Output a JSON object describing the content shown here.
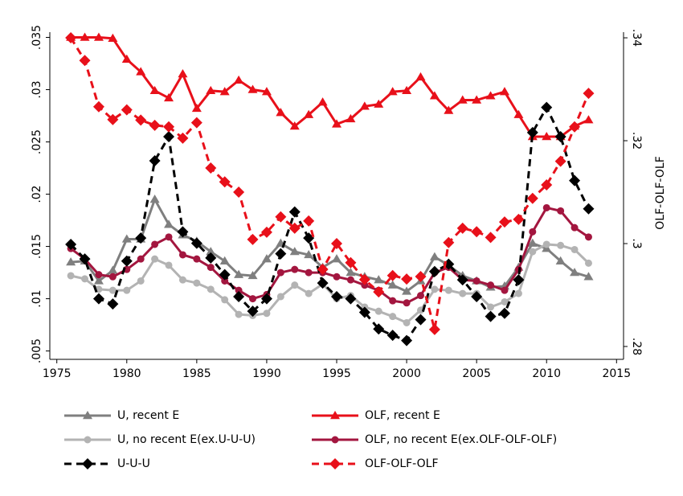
{
  "chart_data": {
    "type": "line",
    "x": [
      1976,
      1977,
      1978,
      1979,
      1980,
      1981,
      1982,
      1983,
      1984,
      1985,
      1986,
      1987,
      1988,
      1989,
      1990,
      1991,
      1992,
      1993,
      1994,
      1995,
      1996,
      1997,
      1998,
      1999,
      2000,
      2001,
      2002,
      2003,
      2004,
      2005,
      2006,
      2007,
      2008,
      2009,
      2010,
      2011,
      2012,
      2013
    ],
    "xlim": [
      1974.5,
      2015.5
    ],
    "xticks": [
      1975,
      1980,
      1985,
      1990,
      1995,
      2000,
      2005,
      2010,
      2015
    ],
    "ylim": [
      0.0042,
      0.0355
    ],
    "yticks": [
      {
        "value": 0.005,
        "label": ".005"
      },
      {
        "value": 0.01,
        "label": ".01"
      },
      {
        "value": 0.015,
        "label": ".015"
      },
      {
        "value": 0.02,
        "label": ".02"
      },
      {
        "value": 0.025,
        "label": ".025"
      },
      {
        "value": 0.03,
        "label": ".03"
      },
      {
        "value": 0.035,
        "label": ".035"
      }
    ],
    "y2lim": [
      0.2775,
      0.3411
    ],
    "y2ticks": [
      {
        "value": 0.28,
        "label": ".28"
      },
      {
        "value": 0.3,
        "label": ".3"
      },
      {
        "value": 0.32,
        "label": ".32"
      },
      {
        "value": 0.34,
        "label": ".34"
      }
    ],
    "y2label": "OLF-OLF-OLF",
    "series": [
      {
        "name": "U, recent E",
        "color": "#7f7f7f",
        "marker": "triangle",
        "dash": false,
        "values": [
          0.0135,
          0.0136,
          0.0117,
          0.0127,
          0.0157,
          0.0157,
          0.0195,
          0.0171,
          0.0161,
          0.0155,
          0.0145,
          0.0136,
          0.0123,
          0.0122,
          0.0138,
          0.0153,
          0.0145,
          0.0142,
          0.013,
          0.0138,
          0.0125,
          0.0121,
          0.0118,
          0.0113,
          0.0107,
          0.0117,
          0.014,
          0.0132,
          0.0122,
          0.0117,
          0.0111,
          0.0112,
          0.013,
          0.0153,
          0.0148,
          0.0136,
          0.0125,
          0.0121
        ]
      },
      {
        "name": "OLF, recent E",
        "color": "#e8101a",
        "marker": "triangle",
        "dash": false,
        "values": [
          0.035,
          0.035,
          0.035,
          0.0349,
          0.0329,
          0.0317,
          0.0299,
          0.0292,
          0.0315,
          0.0282,
          0.0299,
          0.0298,
          0.0309,
          0.03,
          0.0298,
          0.0278,
          0.0265,
          0.0276,
          0.0288,
          0.0267,
          0.0272,
          0.0284,
          0.0286,
          0.0298,
          0.0299,
          0.0312,
          0.0294,
          0.028,
          0.029,
          0.029,
          0.0294,
          0.0298,
          0.0276,
          0.0255,
          0.0255,
          0.0255,
          0.0265,
          0.0271
        ]
      },
      {
        "name": "U, no recent E(ex.U-U-U)",
        "color": "#b3b3b3",
        "marker": "circle",
        "dash": false,
        "values": [
          0.0122,
          0.0119,
          0.0109,
          0.0108,
          0.0108,
          0.0117,
          0.0138,
          0.0132,
          0.0118,
          0.0115,
          0.0109,
          0.0099,
          0.0085,
          0.0084,
          0.0086,
          0.0102,
          0.0113,
          0.0105,
          0.0114,
          0.01,
          0.0103,
          0.0092,
          0.0088,
          0.0083,
          0.0077,
          0.0089,
          0.0109,
          0.0108,
          0.0105,
          0.0105,
          0.0092,
          0.0097,
          0.0105,
          0.0145,
          0.0152,
          0.0151,
          0.0147,
          0.0134
        ]
      },
      {
        "name": "OLF, no recent E(ex.OLF-OLF-OLF)",
        "color": "#a3163f",
        "marker": "circle",
        "dash": false,
        "values": [
          0.0148,
          0.0138,
          0.0123,
          0.0121,
          0.0128,
          0.0138,
          0.0152,
          0.0159,
          0.0142,
          0.0138,
          0.013,
          0.0117,
          0.0108,
          0.01,
          0.0104,
          0.0125,
          0.0128,
          0.0125,
          0.0125,
          0.0121,
          0.0118,
          0.0113,
          0.0108,
          0.0098,
          0.0096,
          0.0103,
          0.0125,
          0.013,
          0.0118,
          0.0117,
          0.0113,
          0.0108,
          0.0128,
          0.0164,
          0.0187,
          0.0184,
          0.0168,
          0.0159
        ]
      },
      {
        "name": "U-U-U",
        "color": "#000000",
        "marker": "diamond",
        "dash": true,
        "values": [
          0.0152,
          0.0138,
          0.01,
          0.0095,
          0.0136,
          0.0158,
          0.0232,
          0.0255,
          0.0164,
          0.0153,
          0.0139,
          0.0123,
          0.0102,
          0.0088,
          0.01,
          0.0143,
          0.0183,
          0.0158,
          0.0115,
          0.0102,
          0.01,
          0.0087,
          0.0071,
          0.0065,
          0.006,
          0.008,
          0.0126,
          0.0133,
          0.0118,
          0.0102,
          0.0083,
          0.0086,
          0.0118,
          0.0259,
          0.0283,
          0.0255,
          0.0213,
          0.0186
        ]
      },
      {
        "name": "OLF-OLF-OLF",
        "color": "#e8101a",
        "marker": "diamond",
        "dash": true,
        "axis": "y2",
        "values": [
          0.34,
          0.3356,
          0.3266,
          0.3241,
          0.326,
          0.324,
          0.323,
          0.3227,
          0.3205,
          0.3235,
          0.3147,
          0.312,
          0.31,
          0.3008,
          0.3022,
          0.3052,
          0.303,
          0.3044,
          0.295,
          0.3,
          0.2963,
          0.293,
          0.2906,
          0.2938,
          0.2931,
          0.2936,
          0.2833,
          0.3002,
          0.303,
          0.3023,
          0.3012,
          0.3042,
          0.3047,
          0.3088,
          0.3114,
          0.316,
          0.3227,
          0.3292
        ]
      }
    ]
  }
}
